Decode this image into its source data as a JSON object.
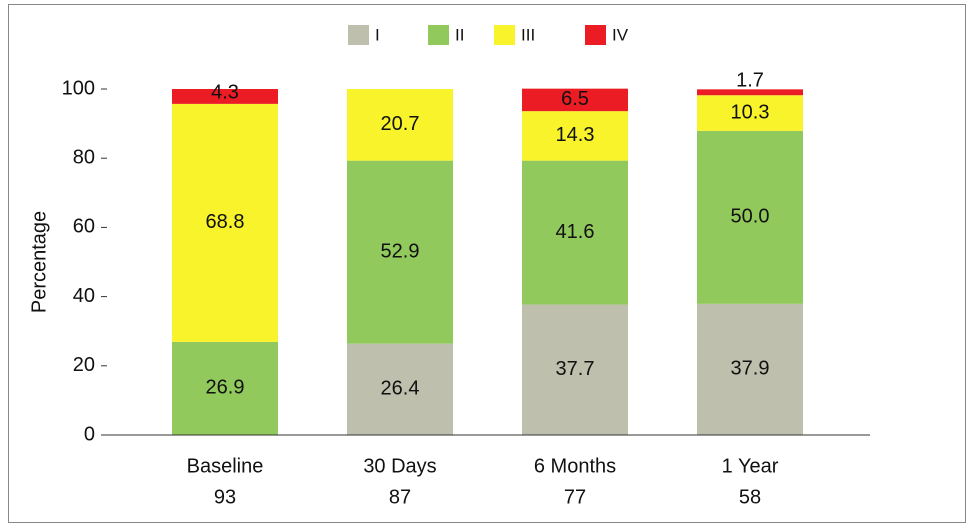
{
  "chart_data": {
    "type": "stacked_bar",
    "y_label": "Percentage",
    "categories": [
      "Baseline",
      "30 Days",
      "6 Months",
      "1 Year"
    ],
    "category_sublabels": [
      "93",
      "87",
      "77",
      "58"
    ],
    "series": [
      {
        "name": "I",
        "color": "#bfbfad",
        "values": [
          null,
          26.4,
          37.7,
          37.9
        ],
        "value_labels": [
          null,
          "26.4",
          "37.7",
          "37.9"
        ]
      },
      {
        "name": "II",
        "color": "#92c95c",
        "values": [
          26.9,
          52.9,
          41.6,
          50.0
        ],
        "value_labels": [
          "26.9",
          "52.9",
          "41.6",
          "50.0"
        ]
      },
      {
        "name": "III",
        "color": "#f8f32b",
        "values": [
          68.8,
          20.7,
          14.3,
          10.3
        ],
        "value_labels": [
          "68.8",
          "20.7",
          "14.3",
          "10.3"
        ]
      },
      {
        "name": "IV",
        "color": "#ec1c24",
        "values": [
          4.3,
          null,
          6.5,
          1.7
        ],
        "value_labels": [
          "4.3",
          null,
          "6.5",
          "1.7"
        ]
      }
    ],
    "ylim": [
      0,
      100
    ],
    "yticks": [
      0,
      20,
      40,
      60,
      80,
      100
    ],
    "legend": "top"
  }
}
